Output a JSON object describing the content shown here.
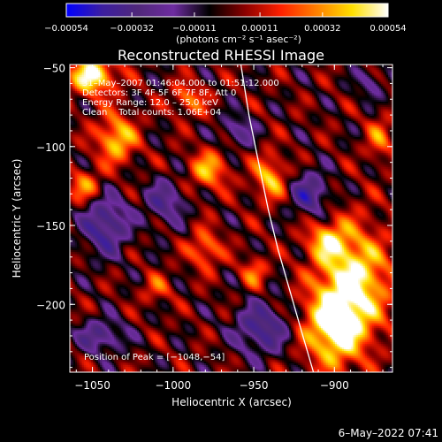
{
  "chart_data": {
    "type": "heatmap",
    "title": "Reconstructed RHESSI Image",
    "xlabel": "Heliocentric X (arcsec)",
    "ylabel": "Heliocentric Y (arcsec)",
    "xlim": [
      -1064,
      -864
    ],
    "ylim": [
      -243,
      -48
    ],
    "x_ticks": [
      -1050,
      -1000,
      -950,
      -900
    ],
    "x_tick_labels": [
      "−1050",
      "−1000",
      "−950",
      "−900"
    ],
    "y_ticks": [
      -50,
      -100,
      -150,
      -200
    ],
    "y_tick_labels": [
      "−50",
      "−100",
      "−150",
      "−200"
    ],
    "colorbar": {
      "range": [
        -0.00054,
        0.00054
      ],
      "ticks": [
        -0.00054,
        -0.00032,
        -0.00011,
        0.00011,
        0.00032,
        0.00054
      ],
      "tick_labels": [
        "−0.00054",
        "−0.00032",
        "−0.00011",
        "0.00011",
        "0.00032",
        "0.00054"
      ],
      "units_label": "(photons cm⁻² s⁻¹ asec⁻²)",
      "colors": [
        "#0000ff",
        "#3c1ea0",
        "#50287a",
        "#6e2ca0",
        "#000000",
        "#8b0000",
        "#ff2000",
        "#ff8000",
        "#ffe000",
        "#ffffff"
      ]
    },
    "annotations": [
      "31–May–2007 01:46:04.000 to 01:51:12.000",
      "Detectors: 3F 4F 5F 6F 7F 8F, Att 0",
      "Energy Range: 12.0 – 25.0 keV",
      "Clean    Total counts: 1.06E+04"
    ],
    "peak_label": "Position of Peak = [−1048,−54]",
    "peak": {
      "x": -1048,
      "y": -54
    },
    "limb_curve": [
      [
        -958,
        -48
      ],
      [
        -953,
        -80
      ],
      [
        -947,
        -110
      ],
      [
        -941,
        -140
      ],
      [
        -935,
        -165
      ],
      [
        -928,
        -190
      ],
      [
        -921,
        -215
      ],
      [
        -913,
        -243
      ]
    ],
    "hot_spots": [
      {
        "x": -1050,
        "y": -55,
        "value": 0.00054,
        "rx": 14,
        "ry": 12
      },
      {
        "x": -1035,
        "y": -95,
        "value": 0.00042,
        "rx": 12,
        "ry": 15
      },
      {
        "x": -1055,
        "y": -125,
        "value": 0.0003,
        "rx": 10,
        "ry": 10
      },
      {
        "x": -990,
        "y": -70,
        "value": 0.00028,
        "rx": 10,
        "ry": 10
      },
      {
        "x": -978,
        "y": -115,
        "value": 0.00035,
        "rx": 12,
        "ry": 12
      },
      {
        "x": -980,
        "y": -165,
        "value": 0.0003,
        "rx": 10,
        "ry": 12
      },
      {
        "x": -950,
        "y": -180,
        "value": 0.00025,
        "rx": 8,
        "ry": 10
      },
      {
        "x": -940,
        "y": -120,
        "value": 0.00038,
        "rx": 10,
        "ry": 14
      },
      {
        "x": -1010,
        "y": -190,
        "value": 0.0002,
        "rx": 9,
        "ry": 9
      },
      {
        "x": -888,
        "y": -185,
        "value": 0.0005,
        "rx": 22,
        "ry": 34
      },
      {
        "x": -900,
        "y": -215,
        "value": 0.00052,
        "rx": 18,
        "ry": 24
      },
      {
        "x": -905,
        "y": -160,
        "value": 0.00033,
        "rx": 12,
        "ry": 12
      },
      {
        "x": -872,
        "y": -95,
        "value": 0.00025,
        "rx": 8,
        "ry": 14
      },
      {
        "x": -1042,
        "y": -150,
        "value": -0.0004,
        "rx": 14,
        "ry": 18
      },
      {
        "x": -1005,
        "y": -135,
        "value": -0.0003,
        "rx": 12,
        "ry": 14
      },
      {
        "x": -915,
        "y": -130,
        "value": -0.00035,
        "rx": 12,
        "ry": 14
      },
      {
        "x": -945,
        "y": -215,
        "value": -0.00038,
        "rx": 16,
        "ry": 16
      },
      {
        "x": -1045,
        "y": -220,
        "value": -0.00032,
        "rx": 14,
        "ry": 10
      },
      {
        "x": -960,
        "y": -90,
        "value": -0.00025,
        "rx": 10,
        "ry": 10
      },
      {
        "x": -878,
        "y": -60,
        "value": -0.0002,
        "rx": 8,
        "ry": 10
      }
    ]
  },
  "footer": {
    "date_stamp": "6–May–2022 07:41"
  }
}
